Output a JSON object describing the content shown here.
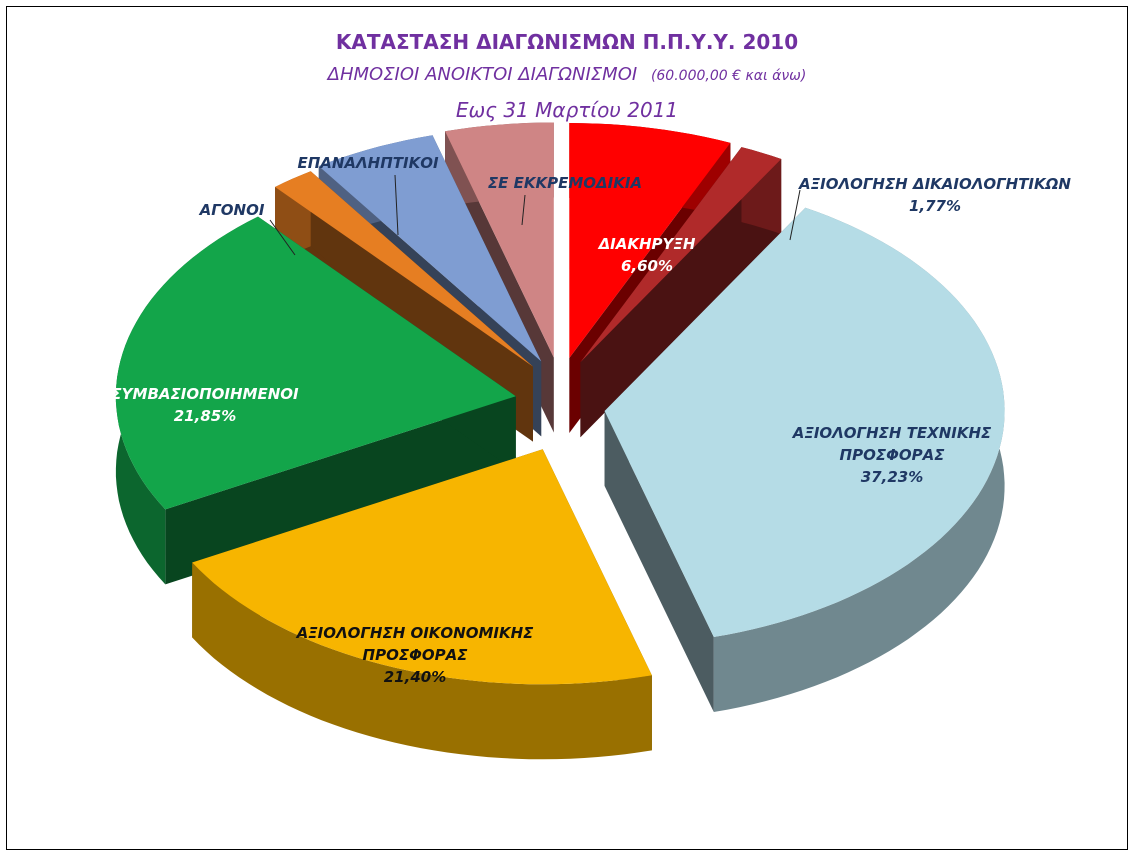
{
  "chart_data": {
    "type": "pie3d",
    "title": "ΚΑΤΑΣΤΑΣΗ ΔΙΑΓΩΝΙΣΜΩΝ Π.Π.Υ.Υ. 2010",
    "subtitle": "ΔΗΜΟΣΙΟΙ ΑΝΟΙΚΤΟΙ ΔΙΑΓΩΝΙΣΜΟΙ",
    "subtitle_note": "(60.000,00 € και άνω)",
    "date_line": "Εως 31 Μαρτίου 2011",
    "categories": [
      "ΔΙΑΚΗΡΥΞΗ",
      "ΑΞΙΟΛΟΓΗΣΗ ΔΙΚΑΙΟΛΟΓΗΤΙΚΩΝ",
      "ΑΞΙΟΛΟΓΗΣΗ ΤΕΧΝΙΚΗΣ ΠΡΟΣΦΟΡΑΣ",
      "ΑΞΙΟΛΟΓΗΣΗ ΟΙΚΟΝΟΜΙΚΗΣ ΠΡΟΣΦΟΡΑΣ",
      "ΣΥΜΒΑΣΙΟΠΟΙΗΜΕΝΟΙ",
      "ΑΓΟΝΟΙ",
      "ΕΠΑΝΑΛΗΠΤΙΚΟΙ",
      "ΣΕ ΕΚΚΡΕΜΟΔΙΚΙΑ"
    ],
    "values": [
      6.6,
      1.77,
      37.23,
      21.4,
      21.85,
      1.77,
      5.0,
      4.38
    ],
    "value_labels": [
      "6,60%",
      "1,77%",
      "37,23%",
      "21,40%",
      "21,85%",
      null,
      null,
      null
    ],
    "colors": [
      "#ff0000",
      "#b02a2a",
      "#b5dce6",
      "#f7b500",
      "#13a54a",
      "#e67e22",
      "#7f9dd2",
      "#cf8585"
    ]
  }
}
